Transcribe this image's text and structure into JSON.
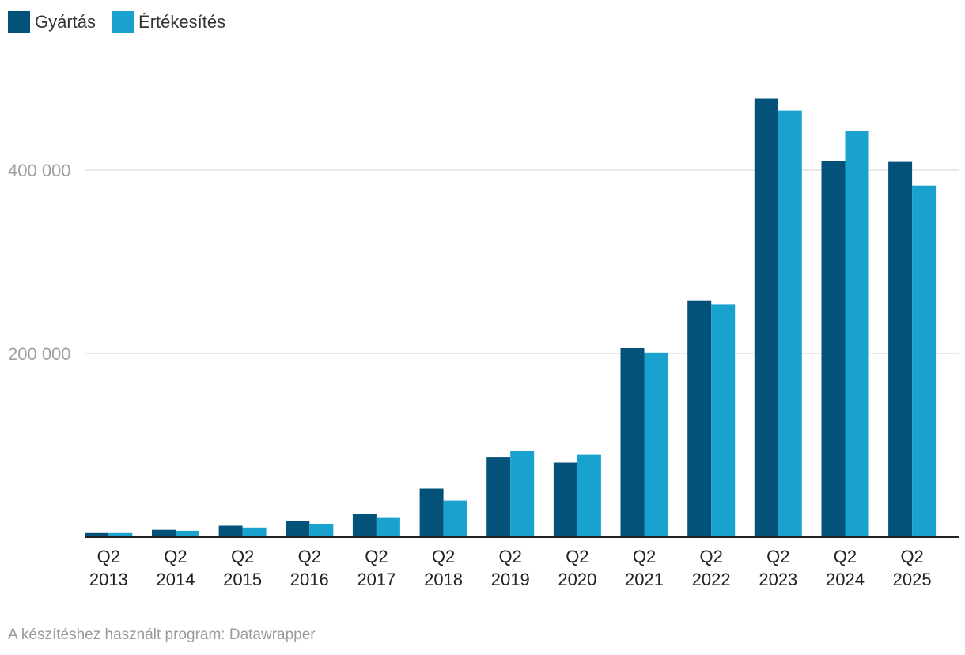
{
  "chart_data": {
    "type": "bar",
    "title": "",
    "xlabel": "",
    "ylabel": "",
    "ylim": [
      0,
      480000
    ],
    "yticks": [
      200000,
      400000
    ],
    "ytick_labels": [
      "200 000",
      "400 000"
    ],
    "grid": true,
    "legend_position": "top-left",
    "categories": [
      [
        "Q2",
        "2013"
      ],
      [
        "Q2",
        "2014"
      ],
      [
        "Q2",
        "2015"
      ],
      [
        "Q2",
        "2016"
      ],
      [
        "Q2",
        "2017"
      ],
      [
        "Q2",
        "2018"
      ],
      [
        "Q2",
        "2019"
      ],
      [
        "Q2",
        "2020"
      ],
      [
        "Q2",
        "2021"
      ],
      [
        "Q2",
        "2022"
      ],
      [
        "Q2",
        "2023"
      ],
      [
        "Q2",
        "2024"
      ],
      [
        "Q2",
        "2025"
      ]
    ],
    "series": [
      {
        "name": "Gyártás",
        "color": "#04527a",
        "values": [
          4500,
          8000,
          12500,
          17500,
          25000,
          53000,
          87000,
          81500,
          206000,
          258000,
          478000,
          410000,
          409000
        ]
      },
      {
        "name": "Értékesítés",
        "color": "#19a2ce",
        "values": [
          4500,
          7000,
          10500,
          14500,
          21000,
          40000,
          94000,
          90000,
          201000,
          254000,
          465000,
          443000,
          383000
        ]
      }
    ]
  },
  "legend": {
    "items": [
      {
        "label": "Gyártás",
        "color": "#04527a"
      },
      {
        "label": "Értékesítés",
        "color": "#19a2ce"
      }
    ]
  },
  "footer": {
    "credit": "A készítéshez használt program: Datawrapper"
  },
  "colors": {
    "gridline": "#e2e2e2",
    "axis": "#222222"
  }
}
